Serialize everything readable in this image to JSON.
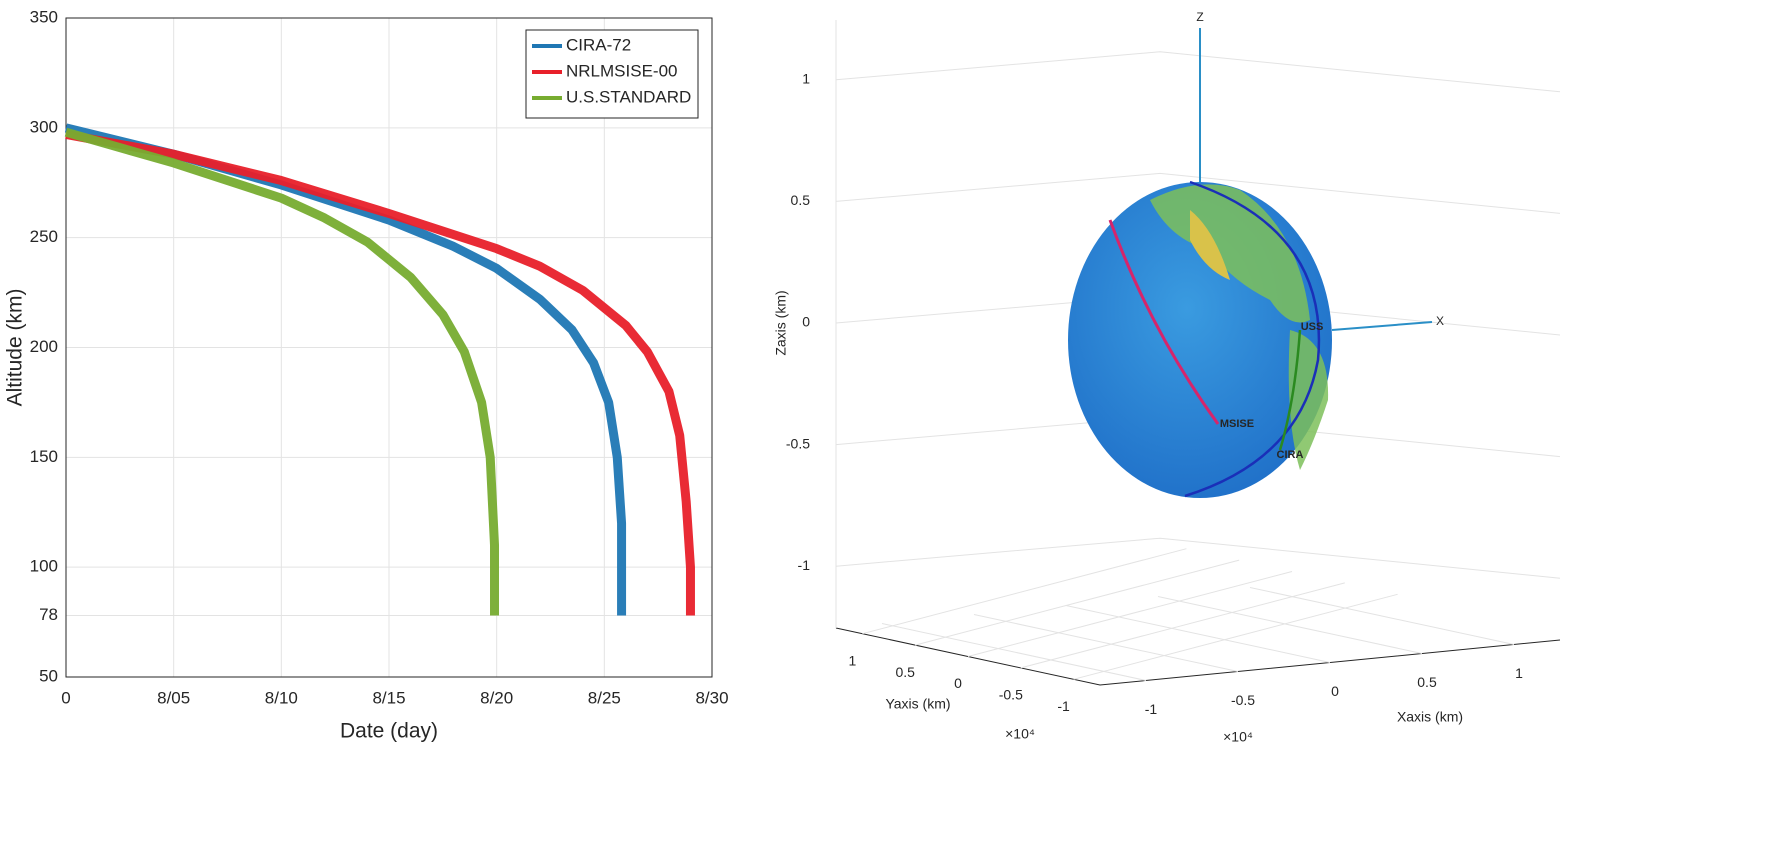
{
  "chart_data": [
    {
      "type": "line",
      "xlabel": "Date (day)",
      "ylabel": "Altitude (km)",
      "xlim": [
        0,
        30
      ],
      "ylim": [
        50,
        350
      ],
      "xticks": [
        0,
        {
          "value": 5,
          "label": "8/05"
        },
        {
          "value": 10,
          "label": "8/10"
        },
        {
          "value": 15,
          "label": "8/15"
        },
        {
          "value": 20,
          "label": "8/20"
        },
        {
          "value": 25,
          "label": "8/25"
        },
        {
          "value": 30,
          "label": "8/30"
        }
      ],
      "yticks": [
        50,
        78,
        100,
        150,
        200,
        250,
        300,
        350
      ],
      "grid": true,
      "legend": "upper right",
      "series": [
        {
          "name": "CIRA-72",
          "color": "#1f77b4",
          "x": [
            0,
            5,
            10,
            15,
            18,
            20,
            22,
            23.5,
            24.5,
            25.2,
            25.6,
            25.8,
            25.8
          ],
          "values": [
            300,
            288,
            274,
            258,
            246,
            236,
            222,
            208,
            193,
            175,
            150,
            120,
            78
          ]
        },
        {
          "name": "NRLMSISE-00",
          "color": "#e8202a",
          "x": [
            0,
            5,
            10,
            15,
            20,
            22,
            24,
            26,
            27,
            28,
            28.5,
            28.8,
            29,
            29
          ],
          "values": [
            297,
            288,
            276,
            261,
            245,
            237,
            226,
            210,
            198,
            180,
            160,
            130,
            100,
            78
          ]
        },
        {
          "name": "U.S.STANDARD",
          "color": "#77ac30",
          "x": [
            0,
            5,
            10,
            12,
            14,
            16,
            17.5,
            18.5,
            19.3,
            19.7,
            19.9,
            19.9
          ],
          "values": [
            298,
            284,
            268,
            259,
            248,
            232,
            215,
            198,
            175,
            150,
            110,
            78
          ]
        }
      ]
    },
    {
      "type": "globe3d",
      "xlabel": "Xaxis (km)",
      "ylabel": "Yaxis (km)",
      "zlabel": "Zaxis (km)",
      "x_multiplier": "×10⁴",
      "y_multiplier": "×10⁴",
      "zlim": [
        -1.25,
        1.25
      ],
      "zticks": [
        -1,
        -0.5,
        0,
        0.5,
        1
      ],
      "ylim": [
        -1.25,
        1.25
      ],
      "yticks": [
        -1,
        -0.5,
        0,
        0.5,
        1
      ],
      "xlim": [
        -1.25,
        1.25
      ],
      "xticks": [
        -1,
        -0.5,
        0,
        0.5,
        1
      ],
      "annotations": [
        "Z",
        "X",
        "USS",
        "MSISE",
        "CIRA"
      ]
    }
  ]
}
